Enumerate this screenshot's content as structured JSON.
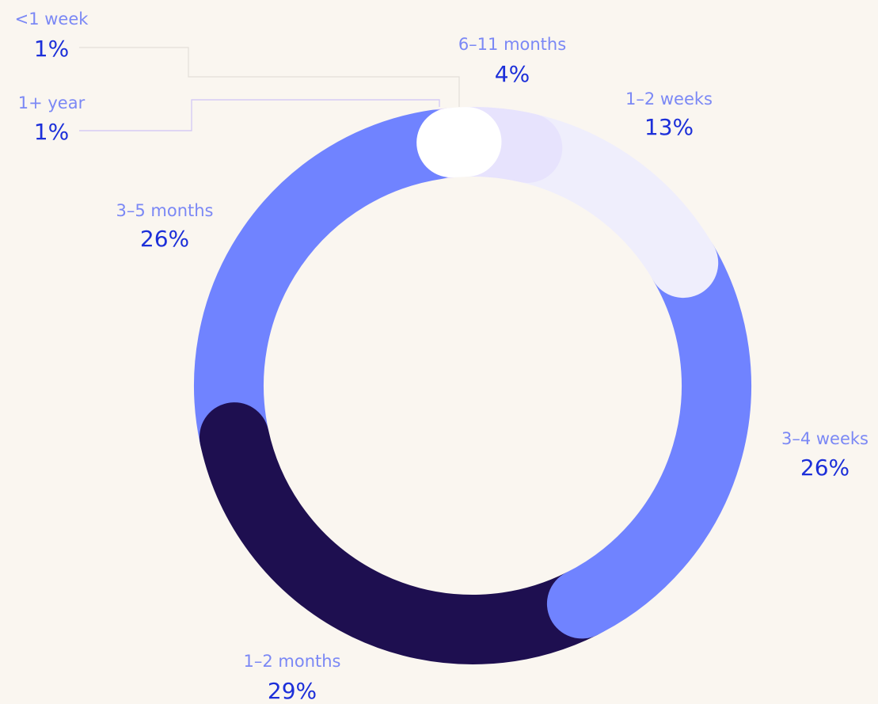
{
  "chart_data": {
    "type": "donut",
    "categories": [
      "<1 week",
      "6–11 months",
      "1–2 weeks",
      "3–4 weeks",
      "1–2 months",
      "3–5 months",
      "1+ year"
    ],
    "values": [
      1,
      4,
      13,
      26,
      29,
      26,
      1
    ],
    "value_labels": [
      "1%",
      "4%",
      "13%",
      "26%",
      "29%",
      "26%",
      "1%"
    ],
    "colors": [
      "#ffffff",
      "#e7e3fd",
      "#efeefc",
      "#7083ff",
      "#1e0f50",
      "#7083ff",
      "#d8c8fb"
    ]
  }
}
